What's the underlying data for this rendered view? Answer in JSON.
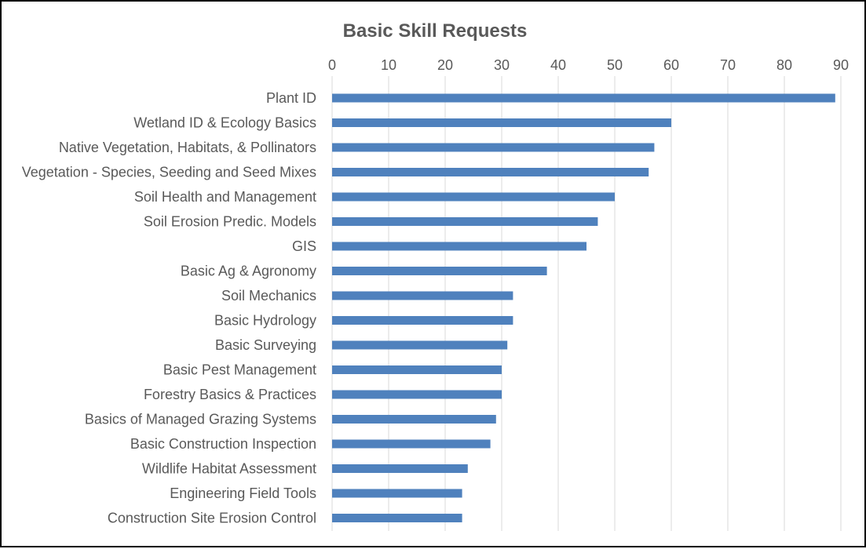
{
  "chart_data": {
    "type": "bar",
    "orientation": "horizontal",
    "title": "Basic Skill Requests",
    "xlabel": "",
    "ylabel": "",
    "xlim": [
      0,
      90
    ],
    "x_ticks": [
      "0",
      "10",
      "20",
      "30",
      "40",
      "50",
      "60",
      "70",
      "80",
      "90"
    ],
    "x_axis_position": "top",
    "grid": true,
    "legend": "none",
    "bar_color": "#4f81bd",
    "categories": [
      "Plant ID",
      "Wetland ID & Ecology Basics",
      "Native Vegetation, Habitats, & Pollinators",
      "Vegetation - Species, Seeding and Seed Mixes",
      "Soil Health and Management",
      "Soil Erosion Predic. Models",
      "GIS",
      "Basic Ag & Agronomy",
      "Soil Mechanics ",
      "Basic Hydrology",
      "Basic Surveying",
      "Basic Pest Management",
      "Forestry Basics & Practices ",
      "Basics of Managed Grazing Systems",
      "Basic Construction Inspection",
      "Wildlife Habitat Assessment",
      "Engineering Field Tools",
      "Construction Site Erosion Control"
    ],
    "values": [
      89,
      60,
      57,
      56,
      50,
      47,
      45,
      38,
      32,
      32,
      31,
      30,
      30,
      29,
      28,
      24,
      23,
      23
    ]
  }
}
